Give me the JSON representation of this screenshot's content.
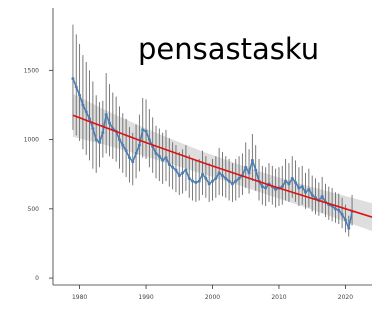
{
  "chart_data": {
    "type": "line",
    "title": "pensastasku",
    "xlabel": "",
    "ylabel": "",
    "xlim": [
      1976,
      2024
    ],
    "ylim": [
      -50,
      1950
    ],
    "x_ticks": [
      1980,
      1990,
      2000,
      2010,
      2020
    ],
    "x_tick_labels": [
      "1980",
      "1990",
      "2000",
      "2010",
      "2020"
    ],
    "y_ticks": [
      0,
      500,
      1000,
      1500
    ],
    "y_tick_labels": [
      "0",
      "500",
      "1000",
      "1500"
    ],
    "grid": false,
    "colors": {
      "observed": "#4a7fb5",
      "error_bars": "#6b6b6b",
      "trend": "#dd1111",
      "confidence_band": "#d3d3d3"
    },
    "series": [
      {
        "role": "observed",
        "x": [
          1979,
          1979.5,
          1980,
          1980.5,
          1981,
          1981.5,
          1982,
          1982.5,
          1983,
          1983.5,
          1984,
          1984.5,
          1985,
          1985.5,
          1986,
          1986.5,
          1987,
          1987.5,
          1988,
          1988.5,
          1989,
          1989.5,
          1990,
          1990.5,
          1991,
          1991.5,
          1992,
          1992.5,
          1993,
          1993.5,
          1994,
          1994.5,
          1995,
          1995.5,
          1996,
          1996.5,
          1997,
          1997.5,
          1998,
          1998.5,
          1999,
          1999.5,
          2000,
          2000.5,
          2001,
          2001.5,
          2002,
          2002.5,
          2003,
          2003.5,
          2004,
          2004.5,
          2005,
          2005.5,
          2006,
          2006.5,
          2007,
          2007.5,
          2008,
          2008.5,
          2009,
          2009.5,
          2010,
          2010.5,
          2011,
          2011.5,
          2012,
          2012.5,
          2013,
          2013.5,
          2014,
          2014.5,
          2015,
          2015.5,
          2016,
          2016.5,
          2017,
          2017.5,
          2018,
          2018.5,
          2019,
          2019.5,
          2020,
          2020.5,
          2021
        ],
        "y": [
          1440,
          1380,
          1320,
          1250,
          1200,
          1150,
          1080,
          1000,
          980,
          1050,
          1180,
          1120,
          1080,
          1060,
          1000,
          960,
          920,
          870,
          840,
          900,
          960,
          1070,
          1060,
          1000,
          950,
          900,
          880,
          850,
          870,
          820,
          800,
          780,
          740,
          760,
          780,
          720,
          700,
          690,
          700,
          750,
          720,
          680,
          700,
          720,
          760,
          740,
          720,
          700,
          680,
          700,
          720,
          740,
          800,
          760,
          850,
          780,
          700,
          660,
          650,
          680,
          660,
          640,
          650,
          660,
          700,
          680,
          720,
          690,
          650,
          660,
          620,
          640,
          600,
          580,
          560,
          590,
          550,
          530,
          520,
          500,
          490,
          460,
          420,
          360,
          480
        ],
        "y_lower": [
          1070,
          1030,
          990,
          930,
          890,
          850,
          790,
          760,
          800,
          870,
          900,
          880,
          860,
          840,
          790,
          760,
          730,
          690,
          670,
          720,
          770,
          870,
          860,
          800,
          760,
          720,
          700,
          680,
          700,
          660,
          640,
          620,
          600,
          610,
          630,
          580,
          560,
          550,
          560,
          600,
          580,
          550,
          560,
          580,
          600,
          590,
          580,
          560,
          550,
          560,
          580,
          600,
          650,
          610,
          700,
          630,
          560,
          530,
          520,
          550,
          530,
          510,
          520,
          530,
          560,
          550,
          580,
          550,
          520,
          530,
          500,
          510,
          480,
          460,
          450,
          470,
          440,
          420,
          410,
          400,
          390,
          360,
          330,
          300,
          380
        ],
        "y_upper": [
          1830,
          1760,
          1690,
          1610,
          1560,
          1500,
          1420,
          1320,
          1270,
          1280,
          1480,
          1400,
          1340,
          1310,
          1240,
          1190,
          1150,
          1090,
          1050,
          1110,
          1180,
          1300,
          1290,
          1220,
          1160,
          1100,
          1080,
          1050,
          1070,
          1010,
          980,
          960,
          910,
          930,
          960,
          890,
          860,
          850,
          860,
          920,
          880,
          830,
          860,
          880,
          940,
          910,
          880,
          860,
          830,
          860,
          880,
          900,
          980,
          930,
          1040,
          960,
          860,
          810,
          800,
          830,
          810,
          790,
          800,
          810,
          860,
          830,
          880,
          850,
          800,
          810,
          760,
          790,
          740,
          720,
          690,
          730,
          680,
          660,
          650,
          620,
          610,
          580,
          530,
          450,
          600
        ]
      },
      {
        "role": "trend",
        "x": [
          1979,
          1984,
          1989,
          1994,
          1999,
          2004,
          2009,
          2014,
          2019,
          2024
        ],
        "y": [
          1175,
          1085,
          995,
          910,
          825,
          745,
          665,
          590,
          515,
          440
        ]
      }
    ],
    "confidence_band": {
      "x": [
        1979,
        1984,
        1989,
        1994,
        1999,
        2004,
        2009,
        2014,
        2019,
        2024
      ],
      "lower": [
        1020,
        960,
        890,
        820,
        745,
        670,
        590,
        510,
        425,
        340
      ],
      "upper": [
        1330,
        1210,
        1100,
        1000,
        905,
        820,
        740,
        670,
        605,
        540
      ]
    }
  }
}
